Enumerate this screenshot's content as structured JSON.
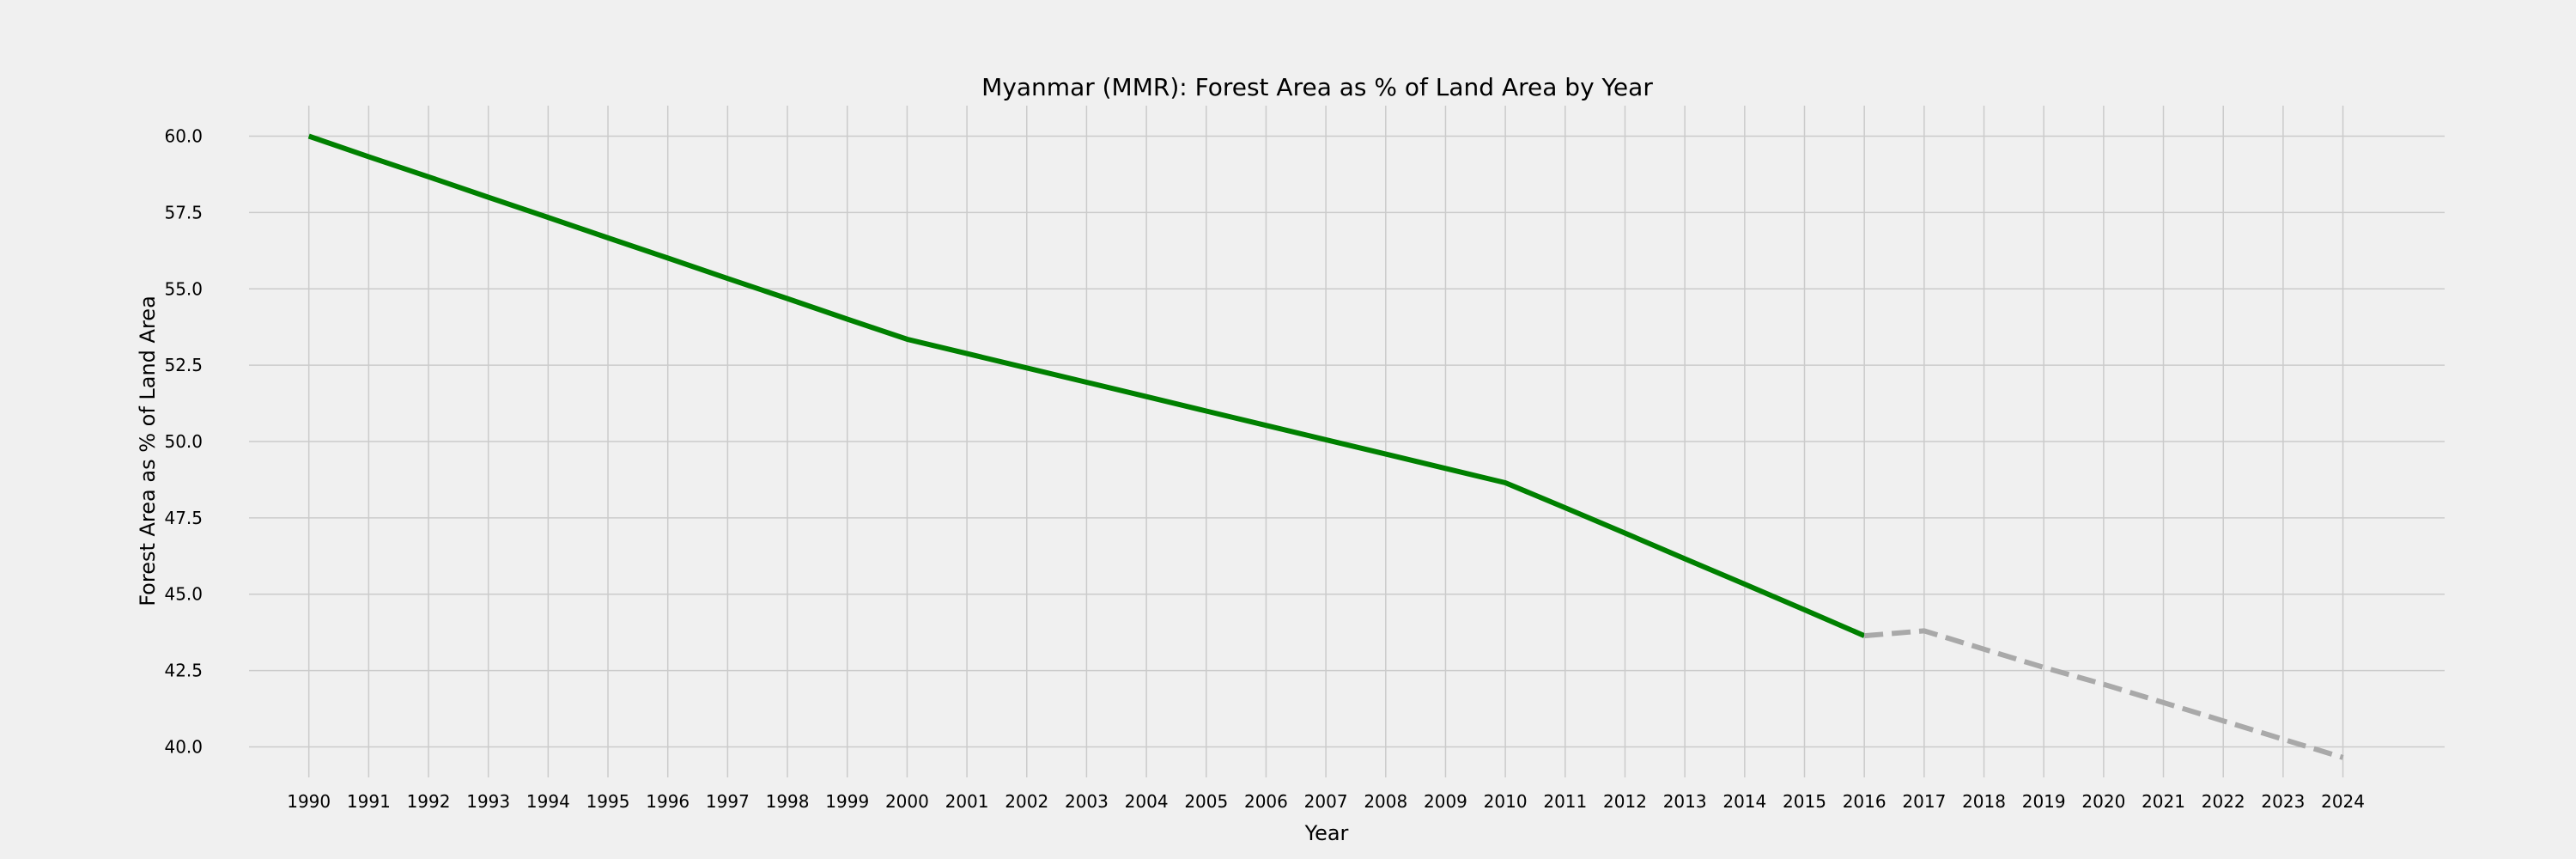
{
  "chart_data": {
    "type": "line",
    "title": "Myanmar (MMR): Forest Area as % of Land Area by Year",
    "xlabel": "Year",
    "ylabel": "Forest Area as % of Land Area",
    "xlim": [
      1989,
      2025.7
    ],
    "ylim": [
      39.0,
      61.0
    ],
    "x_ticks": [
      1990,
      1991,
      1992,
      1993,
      1994,
      1995,
      1996,
      1997,
      1998,
      1999,
      2000,
      2001,
      2002,
      2003,
      2004,
      2005,
      2006,
      2007,
      2008,
      2009,
      2010,
      2011,
      2012,
      2013,
      2014,
      2015,
      2016,
      2017,
      2018,
      2019,
      2020,
      2021,
      2022,
      2023,
      2024
    ],
    "y_ticks": [
      40.0,
      42.5,
      45.0,
      47.5,
      50.0,
      52.5,
      55.0,
      57.5,
      60.0
    ],
    "grid": true,
    "series": [
      {
        "style": "solid",
        "color": "#008000",
        "x": [
          1990,
          1991,
          1992,
          1993,
          1994,
          1995,
          1996,
          1997,
          1998,
          1999,
          2000,
          2001,
          2002,
          2003,
          2004,
          2005,
          2006,
          2007,
          2008,
          2009,
          2010,
          2011,
          2012,
          2013,
          2014,
          2015,
          2016
        ],
        "y": [
          60.0,
          59.33,
          58.67,
          58.0,
          57.34,
          56.67,
          56.01,
          55.34,
          54.68,
          54.01,
          53.35,
          52.88,
          52.41,
          51.94,
          51.47,
          51.0,
          50.53,
          50.06,
          49.59,
          49.12,
          48.65,
          47.83,
          47.0,
          46.16,
          45.33,
          44.49,
          43.64
        ]
      },
      {
        "style": "dashed",
        "color": "#a9a9a9",
        "x": [
          2016,
          2017,
          2018,
          2019,
          2020,
          2021,
          2022,
          2023,
          2024
        ],
        "y": [
          43.64,
          43.8,
          43.2,
          42.6,
          42.05,
          41.45,
          40.85,
          40.25,
          39.65
        ]
      }
    ]
  }
}
